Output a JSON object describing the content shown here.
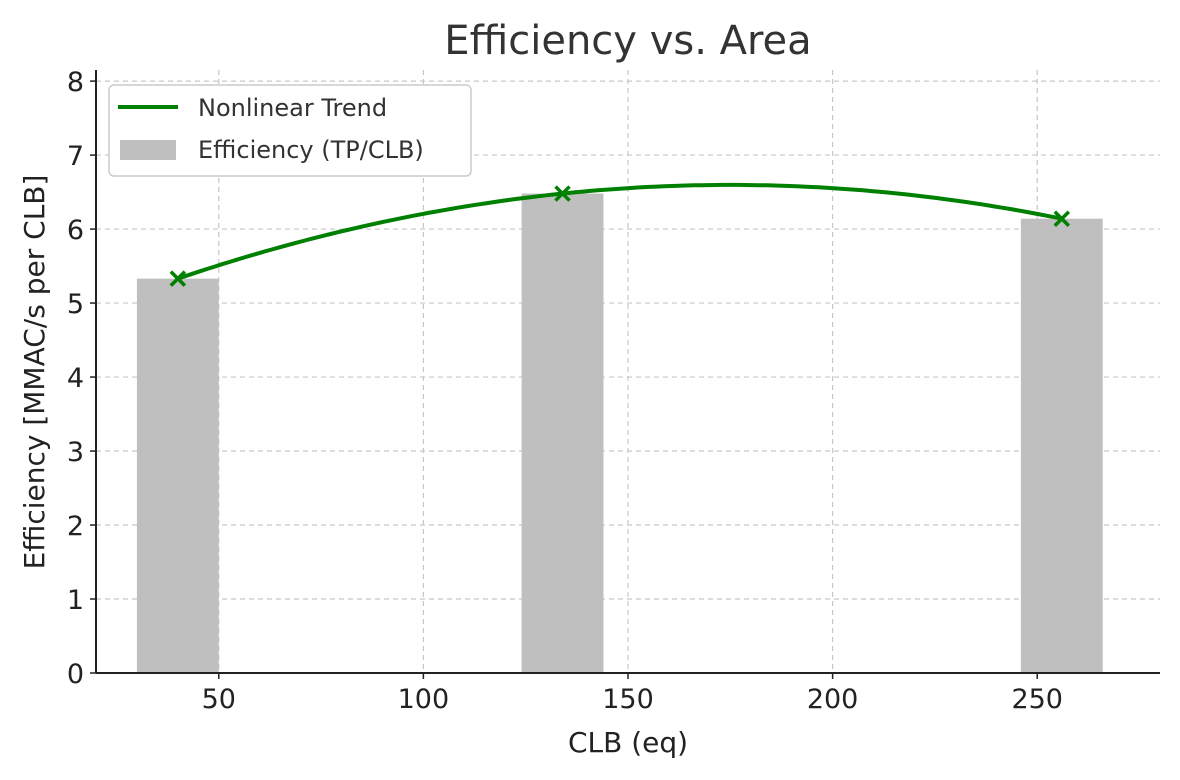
{
  "chart_data": {
    "type": "bar",
    "title": "Efficiency vs. Area",
    "xlabel": "CLB (eq)",
    "ylabel": "Efficiency [MMAC/s per CLB]",
    "xlim": [
      20,
      280
    ],
    "ylim": [
      0,
      8.15
    ],
    "xticks": [
      50,
      100,
      150,
      200,
      250
    ],
    "yticks": [
      0,
      1,
      2,
      3,
      4,
      5,
      6,
      7,
      8
    ],
    "grid": true,
    "legend_position": "top-left",
    "bar_width": 20,
    "bars": {
      "name": "Efficiency (TP/CLB)",
      "color": "#bfbfbf",
      "x": [
        40,
        134,
        256
      ],
      "values": [
        5.33,
        6.48,
        6.14
      ]
    },
    "trend": {
      "name": "Nonlinear Trend",
      "color": "#008000",
      "points_x": [
        40,
        134,
        256
      ],
      "points_y": [
        5.33,
        6.48,
        6.14
      ],
      "marker": "x"
    }
  }
}
